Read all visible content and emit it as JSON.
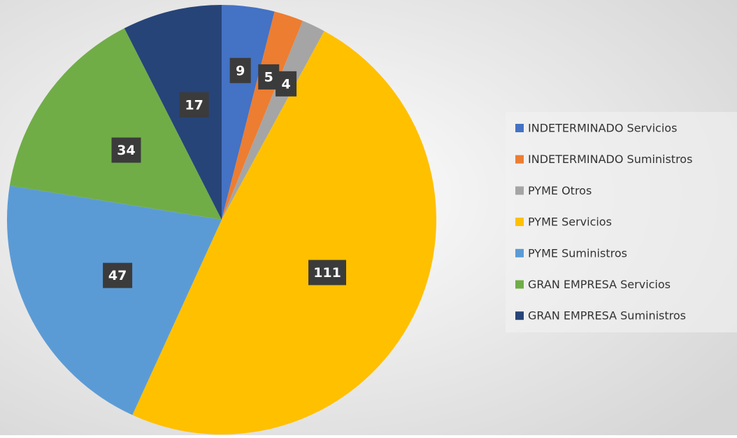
{
  "chart_data": {
    "type": "pie",
    "categories": [
      "INDETERMINADO Servicios",
      "INDETERMINADO Suministros",
      "PYME Otros",
      "PYME Servicios",
      "PYME Suministros",
      "GRAN EMPRESA Servicios",
      "GRAN EMPRESA Suministros"
    ],
    "values": [
      9,
      5,
      4,
      111,
      47,
      34,
      17
    ],
    "colors": [
      "#4472c4",
      "#ed7d31",
      "#a5a5a5",
      "#ffc000",
      "#5b9bd5",
      "#70ad47",
      "#264478"
    ],
    "legend": "right"
  }
}
